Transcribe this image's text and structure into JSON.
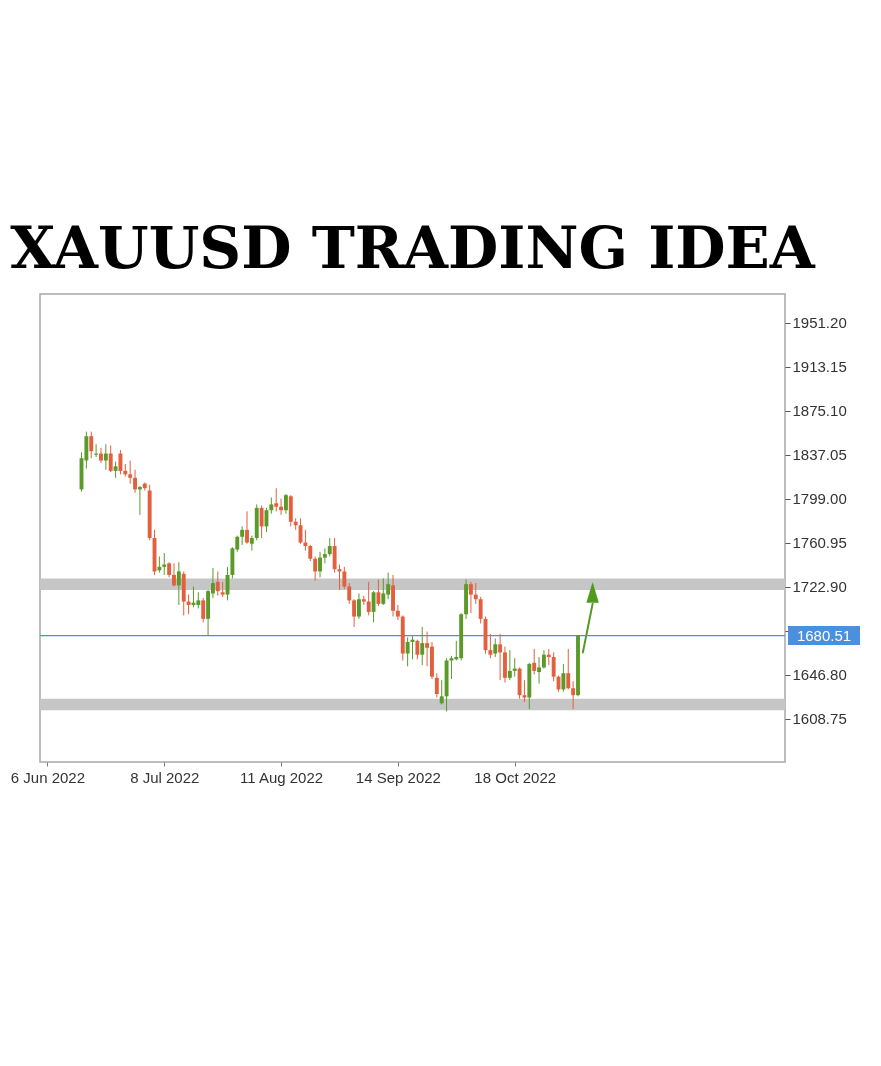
{
  "chart_data": {
    "type": "candlestick",
    "title": "XAUUSD TRADING IDEA",
    "categories": [
      "6 Jun 2022",
      null,
      null,
      null,
      null,
      null,
      null,
      null,
      null,
      null,
      null,
      null,
      null,
      null,
      null,
      null,
      null,
      null,
      null,
      null,
      null,
      null,
      null,
      null,
      "8 Jul 2022",
      null,
      null,
      null,
      null,
      null,
      null,
      null,
      null,
      null,
      null,
      null,
      null,
      null,
      null,
      null,
      null,
      null,
      null,
      null,
      null,
      null,
      null,
      null,
      "11 Aug 2022",
      null,
      null,
      null,
      null,
      null,
      null,
      null,
      null,
      null,
      null,
      null,
      null,
      null,
      null,
      null,
      null,
      null,
      null,
      null,
      null,
      null,
      null,
      null,
      "14 Sep 2022",
      null,
      null,
      null,
      null,
      null,
      null,
      null,
      null,
      null,
      null,
      null,
      null,
      null,
      null,
      null,
      null,
      null,
      null,
      null,
      null,
      null,
      null,
      null,
      "18 Oct 2022",
      null,
      null,
      null,
      null,
      null,
      null,
      null,
      null,
      null,
      null,
      null,
      null,
      null,
      null,
      null,
      null,
      null,
      null,
      null,
      null,
      null,
      null,
      null,
      null,
      null,
      null,
      null,
      null,
      null,
      null,
      null,
      null,
      null,
      null,
      null,
      null,
      null,
      null,
      null,
      null,
      null,
      null,
      null,
      null,
      null,
      null,
      null,
      null,
      null,
      null,
      null,
      null,
      null,
      null
    ],
    "ohlc": [
      null,
      null,
      null,
      null,
      null,
      null,
      null,
      [
        1807,
        1839,
        1805,
        1834
      ],
      [
        1832,
        1857,
        1825,
        1853
      ],
      [
        1853,
        1857,
        1834,
        1840
      ],
      [
        1837,
        1846,
        1835,
        1838
      ],
      [
        1838,
        1843,
        1830,
        1832
      ],
      [
        1832,
        1846,
        1824,
        1838
      ],
      [
        1838,
        1845,
        1822,
        1823
      ],
      [
        1823,
        1831,
        1817,
        1827
      ],
      [
        1838,
        1841,
        1820,
        1823
      ],
      [
        1823,
        1829,
        1818,
        1820
      ],
      [
        1820,
        1832,
        1812,
        1817
      ],
      [
        1817,
        1824,
        1804,
        1807
      ],
      [
        1807,
        1810,
        1785,
        1809
      ],
      [
        1812,
        1813,
        1806,
        1808
      ],
      [
        1806,
        1811,
        1763,
        1765
      ],
      [
        1765,
        1772,
        1733,
        1736
      ],
      [
        1737,
        1749,
        1735,
        1740
      ],
      [
        1740,
        1752,
        1733,
        1742
      ],
      [
        1743,
        1744,
        1731,
        1733
      ],
      [
        1733,
        1743,
        1723,
        1724
      ],
      [
        1724,
        1744,
        1707,
        1736
      ],
      [
        1734,
        1736,
        1698,
        1710
      ],
      [
        1710,
        1716,
        1699,
        1707
      ],
      [
        1707,
        1723,
        1705,
        1709
      ],
      [
        1707,
        1718,
        1704,
        1711
      ],
      [
        1711,
        1713,
        1692,
        1695
      ],
      [
        1695,
        1720,
        1681,
        1719
      ],
      [
        1717,
        1739,
        1713,
        1726
      ],
      [
        1727,
        1736,
        1715,
        1719
      ],
      [
        1718,
        1727,
        1714,
        1716
      ],
      [
        1716,
        1740,
        1711,
        1733
      ],
      [
        1733,
        1757,
        1730,
        1756
      ],
      [
        1755,
        1767,
        1753,
        1766
      ],
      [
        1766,
        1775,
        1759,
        1772
      ],
      [
        1772,
        1788,
        1760,
        1761
      ],
      [
        1760,
        1767,
        1754,
        1765
      ],
      [
        1765,
        1794,
        1763,
        1791
      ],
      [
        1791,
        1793,
        1765,
        1775
      ],
      [
        1775,
        1791,
        1770,
        1789
      ],
      [
        1789,
        1800,
        1786,
        1794
      ],
      [
        1795,
        1808,
        1788,
        1792
      ],
      [
        1792,
        1799,
        1785,
        1789
      ],
      [
        1789,
        1803,
        1786,
        1802
      ],
      [
        1801,
        1802,
        1775,
        1779
      ],
      [
        1779,
        1782,
        1772,
        1776
      ],
      [
        1776,
        1782,
        1760,
        1761
      ],
      [
        1761,
        1772,
        1754,
        1758
      ],
      [
        1758,
        1759,
        1745,
        1747
      ],
      [
        1747,
        1749,
        1728,
        1736
      ],
      [
        1736,
        1753,
        1731,
        1748
      ],
      [
        1748,
        1756,
        1743,
        1751
      ],
      [
        1751,
        1765,
        1749,
        1758
      ],
      [
        1758,
        1765,
        1735,
        1738
      ],
      [
        1738,
        1742,
        1720,
        1736
      ],
      [
        1736,
        1740,
        1721,
        1723
      ],
      [
        1723,
        1726,
        1708,
        1711
      ],
      [
        1711,
        1712,
        1688,
        1697
      ],
      [
        1697,
        1717,
        1695,
        1712
      ],
      [
        1712,
        1715,
        1707,
        1710
      ],
      [
        1710,
        1727,
        1698,
        1701
      ],
      [
        1701,
        1719,
        1692,
        1718
      ],
      [
        1718,
        1729,
        1706,
        1708
      ],
      [
        1708,
        1730,
        1707,
        1717
      ],
      [
        1716,
        1735,
        1712,
        1725
      ],
      [
        1724,
        1733,
        1697,
        1702
      ],
      [
        1702,
        1707,
        1694,
        1697
      ],
      [
        1697,
        1698,
        1659,
        1665
      ],
      [
        1665,
        1679,
        1654,
        1675
      ],
      [
        1675,
        1680,
        1660,
        1677
      ],
      [
        1676,
        1677,
        1660,
        1664
      ],
      [
        1664,
        1688,
        1655,
        1674
      ],
      [
        1674,
        1684,
        1654,
        1670
      ],
      [
        1671,
        1675,
        1643,
        1645
      ],
      [
        1644,
        1648,
        1627,
        1630
      ],
      [
        1622,
        1642,
        1621,
        1628
      ],
      [
        1628,
        1661,
        1615,
        1659
      ],
      [
        1659,
        1663,
        1643,
        1661
      ],
      [
        1660,
        1676,
        1659,
        1662
      ],
      [
        1661,
        1700,
        1659,
        1699
      ],
      [
        1699,
        1729,
        1695,
        1725
      ],
      [
        1725,
        1727,
        1700,
        1716
      ],
      [
        1716,
        1726,
        1708,
        1712
      ],
      [
        1712,
        1714,
        1691,
        1695
      ],
      [
        1695,
        1697,
        1665,
        1668
      ],
      [
        1668,
        1682,
        1661,
        1664
      ],
      [
        1665,
        1678,
        1662,
        1673
      ],
      [
        1673,
        1682,
        1642,
        1666
      ],
      [
        1666,
        1671,
        1640,
        1644
      ],
      [
        1644,
        1668,
        1642,
        1650
      ],
      [
        1650,
        1661,
        1645,
        1652
      ],
      [
        1652,
        1653,
        1626,
        1629
      ],
      [
        1629,
        1642,
        1623,
        1627
      ],
      [
        1627,
        1657,
        1617,
        1656
      ],
      [
        1657,
        1669,
        1647,
        1650
      ],
      [
        1649,
        1662,
        1639,
        1653
      ],
      [
        1653,
        1668,
        1652,
        1664
      ],
      [
        1664,
        1669,
        1655,
        1662
      ],
      [
        1662,
        1666,
        1641,
        1645
      ],
      [
        1645,
        1646,
        1632,
        1634
      ],
      [
        1634,
        1656,
        1632,
        1648
      ],
      [
        1648,
        1669,
        1634,
        1635
      ],
      [
        1635,
        1641,
        1617,
        1629
      ],
      [
        1629,
        1681,
        1628,
        1680.51
      ],
      null,
      null,
      null,
      null,
      null,
      null,
      null,
      null,
      null,
      null,
      null,
      null,
      null,
      null,
      null,
      null,
      null,
      null,
      null,
      null,
      null,
      null,
      null,
      null,
      null,
      null,
      null,
      null,
      null,
      null,
      null,
      null,
      null,
      null,
      null,
      null,
      null,
      null,
      null,
      null,
      null
    ],
    "colors": [
      null,
      null,
      null,
      null,
      null,
      null,
      null,
      "#5a9a2a",
      "#5a9a2a",
      "#e2603e",
      "#5a9a2a",
      "#e2603e",
      "#5a9a2a",
      "#e2603e",
      "#5a9a2a",
      "#e2603e",
      "#e2603e",
      "#e2603e",
      "#e2603e",
      "#5a9a2a",
      "#e2603e",
      "#e2603e",
      "#e2603e",
      "#5a9a2a",
      "#5a9a2a",
      "#e2603e",
      "#e2603e",
      "#5a9a2a",
      "#e2603e",
      "#e2603e",
      "#5a9a2a",
      "#5a9a2a",
      "#e2603e",
      "#5a9a2a",
      "#5a9a2a",
      "#e2603e",
      "#e2603e",
      "#5a9a2a",
      "#5a9a2a",
      "#5a9a2a",
      "#5a9a2a",
      "#e2603e",
      "#5a9a2a",
      "#5a9a2a",
      "#e2603e",
      "#5a9a2a",
      "#5a9a2a",
      "#e2603e",
      "#e2603e",
      "#5a9a2a",
      "#e2603e",
      "#e2603e",
      "#e2603e",
      "#e2603e",
      "#e2603e",
      "#e2603e",
      "#5a9a2a",
      "#5a9a2a",
      "#5a9a2a",
      "#e2603e",
      "#e2603e",
      "#e2603e",
      "#e2603e",
      "#e2603e",
      "#5a9a2a",
      "#e2603e",
      "#e2603e",
      "#5a9a2a",
      "#e2603e",
      "#5a9a2a",
      "#5a9a2a",
      "#e2603e",
      "#e2603e",
      "#e2603e",
      "#5a9a2a",
      "#5a9a2a",
      "#e2603e",
      "#5a9a2a",
      "#e2603e",
      "#e2603e",
      "#e2603e",
      "#5a9a2a",
      "#5a9a2a",
      "#5a9a2a",
      "#5a9a2a",
      "#5a9a2a",
      "#5a9a2a",
      "#e2603e",
      "#e2603e",
      "#e2603e",
      "#e2603e",
      "#e2603e",
      "#5a9a2a",
      "#e2603e",
      "#e2603e",
      "#5a9a2a",
      "#5a9a2a",
      "#e2603e",
      "#e2603e",
      "#5a9a2a",
      "#e2603e",
      "#5a9a2a",
      "#5a9a2a",
      "#e2603e",
      "#e2603e",
      "#e2603e",
      "#5a9a2a",
      "#e2603e",
      "#e2603e",
      "#5a9a2a",
      null,
      null,
      null,
      null,
      null,
      null,
      null,
      null,
      null,
      null,
      null,
      null,
      null,
      null,
      null,
      null,
      null,
      null,
      null,
      null,
      null,
      null,
      null,
      null,
      null,
      null,
      null,
      null,
      null,
      null,
      null,
      null,
      null,
      null,
      null,
      null,
      null,
      null,
      null,
      null,
      null
    ],
    "ylim": [
      1571.2,
      1976.0
    ],
    "yticks": [
      {
        "value": 1951.2,
        "label": "1951.20"
      },
      {
        "value": 1913.15,
        "label": "1913.15"
      },
      {
        "value": 1875.1,
        "label": "1875.10"
      },
      {
        "value": 1837.05,
        "label": "1837.05"
      },
      {
        "value": 1799,
        "label": "1799.00"
      },
      {
        "value": 1760.95,
        "label": "1760.95"
      },
      {
        "value": 1722.9,
        "label": "1722.90"
      },
      {
        "value": 1684.85,
        "label": null
      },
      {
        "value": 1646.8,
        "label": "1646.80"
      },
      {
        "value": 1608.75,
        "label": "1608.75"
      }
    ],
    "series": [
      {
        "type": "line",
        "color": "#4f9a1f",
        "values": [
          null,
          null,
          null,
          null,
          null,
          null,
          null,
          null,
          null,
          null,
          null,
          null,
          null,
          null,
          null,
          null,
          null,
          null,
          null,
          null,
          null,
          null,
          null,
          null,
          null,
          null,
          null,
          null,
          null,
          null,
          null,
          null,
          null,
          null,
          null,
          null,
          null,
          null,
          null,
          null,
          null,
          null,
          null,
          null,
          null,
          null,
          null,
          null,
          null,
          null,
          null,
          null,
          null,
          null,
          null,
          null,
          null,
          null,
          null,
          null,
          null,
          null,
          null,
          null,
          null,
          null,
          null,
          null,
          null,
          null,
          null,
          null,
          null,
          null,
          null,
          null,
          null,
          null,
          null,
          null,
          null,
          null,
          null,
          null,
          null,
          null,
          null,
          null,
          null,
          null,
          null,
          null,
          null,
          null,
          null,
          null,
          null,
          null,
          null,
          null,
          null,
          null,
          null,
          null,
          null,
          null,
          null,
          null,
          null,
          null,
          1666,
          1687,
          1708,
          null,
          null,
          null,
          null,
          null,
          null,
          null,
          null,
          null,
          null,
          null,
          null,
          null,
          null,
          null,
          null,
          null,
          null,
          null,
          null,
          null,
          null,
          null,
          null,
          null,
          null,
          null,
          null,
          null,
          null,
          null,
          null,
          null,
          null,
          null,
          null,
          null,
          null
        ]
      },
      {
        "type": "scatter",
        "color": "#4f9a1f",
        "marker": "triangle",
        "values": [
          null,
          null,
          null,
          null,
          null,
          null,
          null,
          null,
          null,
          null,
          null,
          null,
          null,
          null,
          null,
          null,
          null,
          null,
          null,
          null,
          null,
          null,
          null,
          null,
          null,
          null,
          null,
          null,
          null,
          null,
          null,
          null,
          null,
          null,
          null,
          null,
          null,
          null,
          null,
          null,
          null,
          null,
          null,
          null,
          null,
          null,
          null,
          null,
          null,
          null,
          null,
          null,
          null,
          null,
          null,
          null,
          null,
          null,
          null,
          null,
          null,
          null,
          null,
          null,
          null,
          null,
          null,
          null,
          null,
          null,
          null,
          null,
          null,
          null,
          null,
          null,
          null,
          null,
          null,
          null,
          null,
          null,
          null,
          null,
          null,
          null,
          null,
          null,
          null,
          null,
          null,
          null,
          null,
          null,
          null,
          null,
          null,
          null,
          null,
          null,
          null,
          null,
          null,
          null,
          null,
          null,
          null,
          null,
          null,
          null,
          null,
          null,
          1718,
          null,
          null,
          null,
          null,
          null,
          null,
          null,
          null,
          null,
          null,
          null,
          null,
          null,
          null,
          null,
          null,
          null,
          null,
          null,
          null,
          null,
          null,
          null,
          null,
          null,
          null,
          null,
          null,
          null,
          null,
          null,
          null,
          null,
          null,
          null,
          null,
          null,
          null
        ]
      }
    ],
    "bands": [
      {
        "axis": "y",
        "from": 1720,
        "to": 1730,
        "color": "#c6c6c6"
      },
      {
        "axis": "y",
        "from": 1616,
        "to": 1626,
        "color": "#c6c6c6"
      }
    ],
    "ref_lines": [
      {
        "axis": "y",
        "value": 1680.51,
        "label": "1680.51",
        "color": "#4a90dc"
      }
    ]
  }
}
